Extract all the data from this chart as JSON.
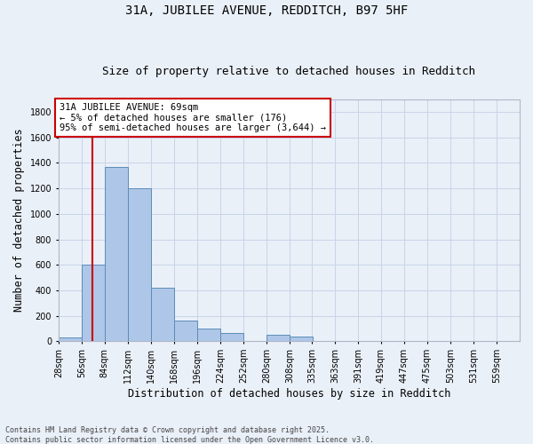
{
  "title1": "31A, JUBILEE AVENUE, REDDITCH, B97 5HF",
  "title2": "Size of property relative to detached houses in Redditch",
  "xlabel": "Distribution of detached houses by size in Redditch",
  "ylabel": "Number of detached properties",
  "bin_edges": [
    28,
    56,
    84,
    112,
    140,
    168,
    196,
    224,
    252,
    280,
    308,
    335,
    363,
    391,
    419,
    447,
    475,
    503,
    531,
    559,
    587
  ],
  "bar_heights": [
    30,
    600,
    1370,
    1200,
    420,
    160,
    100,
    65,
    0,
    50,
    40,
    0,
    0,
    0,
    0,
    0,
    0,
    0,
    0,
    0
  ],
  "bar_color": "#aec6e8",
  "bar_edge_color": "#5b8db8",
  "grid_color": "#c8d4e8",
  "bg_color": "#eaf0f8",
  "annotation_text": "31A JUBILEE AVENUE: 69sqm\n← 5% of detached houses are smaller (176)\n95% of semi-detached houses are larger (3,644) →",
  "vline_x": 69,
  "vline_color": "#cc0000",
  "annot_box_color": "#ffffff",
  "annot_border_color": "#cc0000",
  "ylim": [
    0,
    1900
  ],
  "yticks": [
    0,
    200,
    400,
    600,
    800,
    1000,
    1200,
    1400,
    1600,
    1800
  ],
  "footer1": "Contains HM Land Registry data © Crown copyright and database right 2025.",
  "footer2": "Contains public sector information licensed under the Open Government Licence v3.0.",
  "title_fontsize": 10,
  "subtitle_fontsize": 9,
  "tick_fontsize": 7,
  "xlabel_fontsize": 8.5,
  "ylabel_fontsize": 8.5,
  "annot_fontsize": 7.5,
  "footer_fontsize": 6
}
